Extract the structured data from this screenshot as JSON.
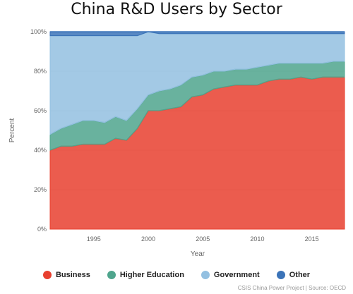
{
  "chart_data": {
    "type": "area",
    "title": "China R&D Users by Sector",
    "xlabel": "Year",
    "ylabel": "Percent",
    "xlim": [
      1991,
      2018
    ],
    "ylim": [
      0,
      100
    ],
    "x_ticks": [
      1995,
      2000,
      2005,
      2010,
      2015
    ],
    "y_ticks": [
      "0%",
      "20%",
      "40%",
      "60%",
      "80%",
      "100%"
    ],
    "grid": "horizontal",
    "legend_position": "bottom",
    "stacked": true,
    "x": [
      1991,
      1992,
      1993,
      1994,
      1995,
      1996,
      1997,
      1998,
      1999,
      2000,
      2001,
      2002,
      2003,
      2004,
      2005,
      2006,
      2007,
      2008,
      2009,
      2010,
      2011,
      2012,
      2013,
      2014,
      2015,
      2016,
      2017,
      2018
    ],
    "series": [
      {
        "name": "Business",
        "color": "#e8402f",
        "values": [
          40,
          42,
          42,
          43,
          43,
          43,
          46,
          45,
          51,
          60,
          60,
          61,
          62,
          67,
          68,
          71,
          72,
          73,
          73,
          73,
          75,
          76,
          76,
          77,
          76,
          77,
          77,
          77
        ]
      },
      {
        "name": "Higher Education",
        "color": "#4fa58d",
        "values": [
          8,
          9,
          11,
          12,
          12,
          11,
          11,
          10,
          10,
          8,
          10,
          10,
          11,
          10,
          10,
          9,
          8,
          8,
          8,
          9,
          8,
          8,
          8,
          7,
          8,
          7,
          8,
          8
        ]
      },
      {
        "name": "Government",
        "color": "#93c0e1",
        "values": [
          50,
          47,
          45,
          43,
          43,
          44,
          41,
          43,
          37,
          32,
          29,
          28,
          26,
          22,
          21,
          19,
          19,
          18,
          18,
          17,
          16,
          15,
          15,
          15,
          15,
          15,
          14,
          14
        ]
      },
      {
        "name": "Other",
        "color": "#3b73b8",
        "values": [
          2,
          2,
          2,
          2,
          2,
          2,
          2,
          2,
          2,
          0,
          1,
          1,
          1,
          1,
          1,
          1,
          1,
          1,
          1,
          1,
          1,
          1,
          1,
          1,
          1,
          1,
          1,
          1
        ]
      }
    ]
  },
  "source": "CSIS China Power Project | Source: OECD"
}
